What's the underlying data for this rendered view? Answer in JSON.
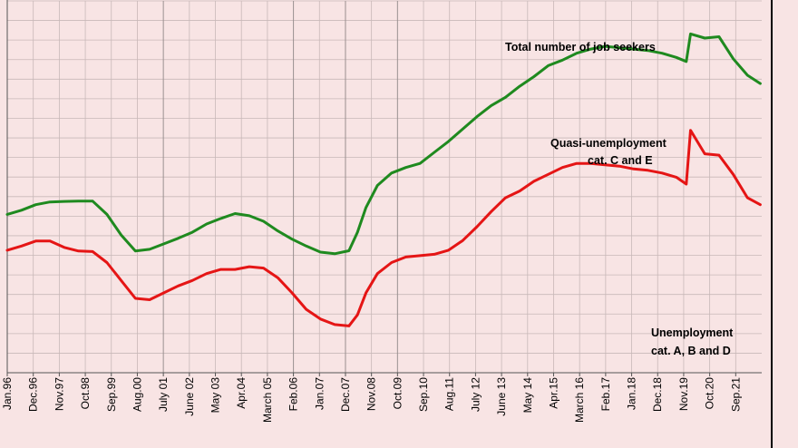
{
  "chart_data": {
    "type": "line",
    "title": "",
    "xlabel": "",
    "ylabel": "",
    "grid": true,
    "x_tick_labels": [
      "Jan.96",
      "Dec.96",
      "Nov.97",
      "Oct.98",
      "Sep.99",
      "Aug.00",
      "July 01",
      "June 02",
      "May 03",
      "Apr.04",
      "March 05",
      "Feb.06",
      "Jan.07",
      "Dec.07",
      "Nov.08",
      "Oct.09",
      "Sep.10",
      "Aug.11",
      "July 12",
      "June 13",
      "May 14",
      "Apr.15",
      "March 16",
      "Feb.17",
      "Jan.18",
      "Dec.18",
      "Nov.19",
      "Oct.20",
      "Sep.21"
    ],
    "xlim": [
      1996.0,
      2022.5
    ],
    "series": [
      {
        "name": "Total number of job seekers",
        "color": "#1f8a1f",
        "x": [
          1996.0,
          1996.5,
          1997.0,
          1997.5,
          1998.0,
          1998.5,
          1999.0,
          1999.5,
          2000.0,
          2000.5,
          2001.0,
          2001.5,
          2002.0,
          2002.5,
          2003.0,
          2003.5,
          2004.0,
          2004.5,
          2005.0,
          2005.5,
          2006.0,
          2006.5,
          2007.0,
          2007.5,
          2008.0,
          2008.3,
          2008.6,
          2009.0,
          2009.5,
          2010.0,
          2010.5,
          2011.0,
          2011.5,
          2012.0,
          2012.5,
          2013.0,
          2013.5,
          2014.0,
          2014.5,
          2015.0,
          2015.5,
          2016.0,
          2016.5,
          2017.0,
          2017.5,
          2018.0,
          2018.5,
          2019.0,
          2019.5,
          2019.85,
          2020.0,
          2020.5,
          2021.0,
          2021.5,
          2022.0,
          2022.45
        ],
        "values": [
          57.5,
          59.0,
          61.0,
          62.0,
          62.2,
          62.3,
          62.3,
          57.5,
          50.0,
          44.2,
          44.8,
          46.8,
          48.8,
          51.0,
          54.0,
          56.0,
          57.8,
          57.0,
          55.0,
          51.5,
          48.5,
          46.0,
          43.8,
          43.2,
          44.3,
          51.0,
          60.0,
          68.0,
          72.5,
          74.5,
          76.0,
          80.0,
          84.0,
          88.5,
          93.0,
          97.0,
          100.0,
          104.0,
          107.5,
          111.5,
          113.5,
          116.0,
          117.5,
          118.5,
          118.0,
          117.5,
          117.0,
          116.0,
          114.5,
          113.0,
          123.0,
          121.5,
          122.0,
          114.0,
          108.0,
          105.0
        ]
      },
      {
        "name": "Quasi-unemployment cat. C and E",
        "color": "#e51515",
        "x": [
          1996.0,
          1996.5,
          1997.0,
          1997.5,
          1998.0,
          1998.5,
          1999.0,
          1999.5,
          2000.0,
          2000.5,
          2001.0,
          2001.5,
          2002.0,
          2002.5,
          2003.0,
          2003.5,
          2004.0,
          2004.5,
          2005.0,
          2005.5,
          2006.0,
          2006.5,
          2007.0,
          2007.5,
          2008.0,
          2008.3,
          2008.6,
          2009.0,
          2009.5,
          2010.0,
          2010.5,
          2011.0,
          2011.5,
          2012.0,
          2012.5,
          2013.0,
          2013.5,
          2014.0,
          2014.5,
          2015.0,
          2015.5,
          2016.0,
          2016.5,
          2017.0,
          2017.5,
          2018.0,
          2018.5,
          2019.0,
          2019.5,
          2019.85,
          2020.0,
          2020.5,
          2021.0,
          2021.5,
          2022.0,
          2022.45
        ],
        "values": [
          44.5,
          46.0,
          47.8,
          47.8,
          45.5,
          44.2,
          44.0,
          40.0,
          33.5,
          27.0,
          26.5,
          29.0,
          31.5,
          33.5,
          36.0,
          37.5,
          37.5,
          38.5,
          38.0,
          34.5,
          29.0,
          23.0,
          19.5,
          17.5,
          17.0,
          21.0,
          29.0,
          36.0,
          40.0,
          42.0,
          42.5,
          43.0,
          44.5,
          48.0,
          53.0,
          58.5,
          63.5,
          66.0,
          69.5,
          72.0,
          74.5,
          76.0,
          76.0,
          75.5,
          75.0,
          74.0,
          73.5,
          72.5,
          71.0,
          68.5,
          88.0,
          79.5,
          79.0,
          72.0,
          63.5,
          61.0
        ]
      }
    ],
    "annotations": [
      {
        "text": "Total number of job seekers"
      },
      {
        "text": "Quasi-unemployment"
      },
      {
        "text": "cat. C and E"
      },
      {
        "text": "Unemployment"
      },
      {
        "text": "cat.  A, B and D"
      }
    ]
  }
}
